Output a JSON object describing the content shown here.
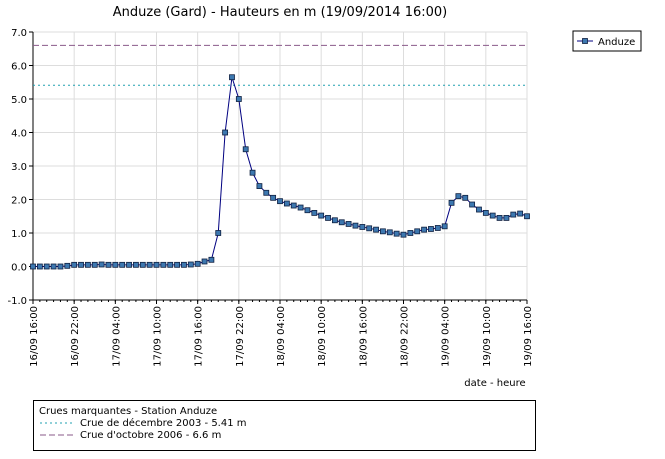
{
  "chart_data": {
    "type": "line",
    "title": "Anduze (Gard) - Hauteurs en m (19/09/2014 16:00)",
    "x_label": "date - heure",
    "x": [
      "16/09 16:00",
      "16/09 17:00",
      "16/09 18:00",
      "16/09 19:00",
      "16/09 20:00",
      "16/09 21:00",
      "16/09 22:00",
      "16/09 23:00",
      "17/09 00:00",
      "17/09 01:00",
      "17/09 02:00",
      "17/09 03:00",
      "17/09 04:00",
      "17/09 05:00",
      "17/09 06:00",
      "17/09 07:00",
      "17/09 08:00",
      "17/09 09:00",
      "17/09 10:00",
      "17/09 11:00",
      "17/09 12:00",
      "17/09 13:00",
      "17/09 14:00",
      "17/09 15:00",
      "17/09 16:00",
      "17/09 17:00",
      "17/09 18:00",
      "17/09 19:00",
      "17/09 20:00",
      "17/09 21:00",
      "17/09 22:00",
      "17/09 23:00",
      "18/09 00:00",
      "18/09 01:00",
      "18/09 02:00",
      "18/09 03:00",
      "18/09 04:00",
      "18/09 05:00",
      "18/09 06:00",
      "18/09 07:00",
      "18/09 08:00",
      "18/09 09:00",
      "18/09 10:00",
      "18/09 11:00",
      "18/09 12:00",
      "18/09 13:00",
      "18/09 14:00",
      "18/09 15:00",
      "18/09 16:00",
      "18/09 17:00",
      "18/09 18:00",
      "18/09 19:00",
      "18/09 20:00",
      "18/09 21:00",
      "18/09 22:00",
      "18/09 23:00",
      "19/09 00:00",
      "19/09 01:00",
      "19/09 02:00",
      "19/09 03:00",
      "19/09 04:00",
      "19/09 05:00",
      "19/09 06:00",
      "19/09 07:00",
      "19/09 08:00",
      "19/09 09:00",
      "19/09 10:00",
      "19/09 11:00",
      "19/09 12:00",
      "19/09 13:00",
      "19/09 14:00",
      "19/09 15:00",
      "19/09 16:00"
    ],
    "series": [
      {
        "name": "Anduze",
        "color": "#000080",
        "marker_color": "#3d78b0",
        "values": [
          0,
          0,
          0,
          0,
          0,
          0.02,
          0.05,
          0.05,
          0.05,
          0.05,
          0.06,
          0.05,
          0.05,
          0.05,
          0.05,
          0.05,
          0.05,
          0.05,
          0.05,
          0.05,
          0.05,
          0.05,
          0.05,
          0.06,
          0.08,
          0.15,
          0.2,
          1.0,
          4.0,
          5.65,
          5.0,
          3.5,
          2.8,
          2.4,
          2.2,
          2.05,
          1.95,
          1.88,
          1.82,
          1.76,
          1.68,
          1.6,
          1.52,
          1.45,
          1.38,
          1.32,
          1.27,
          1.22,
          1.18,
          1.14,
          1.1,
          1.05,
          1.02,
          0.98,
          0.95,
          1.0,
          1.05,
          1.1,
          1.12,
          1.15,
          1.2,
          1.9,
          2.1,
          2.05,
          1.85,
          1.7,
          1.6,
          1.52,
          1.45,
          1.45,
          1.55,
          1.58,
          1.5
        ]
      }
    ],
    "xlim": [
      "16/09 16:00",
      "19/09 16:00"
    ],
    "xticks": [
      "16/09 16:00",
      "16/09 22:00",
      "17/09 04:00",
      "17/09 10:00",
      "17/09 16:00",
      "17/09 22:00",
      "18/09 04:00",
      "18/09 10:00",
      "18/09 16:00",
      "18/09 22:00",
      "19/09 04:00",
      "19/09 10:00",
      "19/09 16:00"
    ],
    "ylim": [
      -1,
      7
    ],
    "yticks": [
      {
        "value": -1,
        "label": "-1.0"
      },
      {
        "value": 0,
        "label": "0.0"
      },
      {
        "value": 1,
        "label": "1.0"
      },
      {
        "value": 2,
        "label": "2.0"
      },
      {
        "value": 3,
        "label": "3.0"
      },
      {
        "value": 4,
        "label": "4.0"
      },
      {
        "value": 5,
        "label": "5.0"
      },
      {
        "value": 6,
        "label": "6.0"
      },
      {
        "value": 7,
        "label": "7.0"
      }
    ],
    "grid": true,
    "reference_title": "Crues marquantes - Station Anduze",
    "reference_lines": [
      {
        "label": "Crue de décembre 2003 - 5.41 m",
        "value": 5.41,
        "color": "#20a0b0",
        "dash": "2,3"
      },
      {
        "label": "Crue d'octobre 2006 - 6.6 m",
        "value": 6.6,
        "color": "#8a5a8a",
        "dash": "6,3"
      }
    ]
  }
}
